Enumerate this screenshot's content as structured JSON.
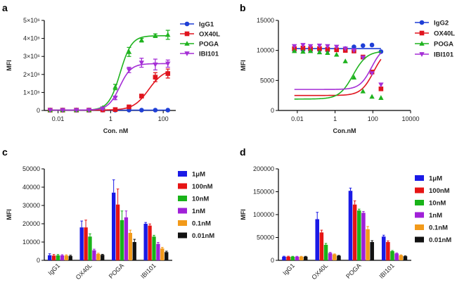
{
  "chart_data": [
    {
      "panel": "a",
      "type": "line",
      "xlabel": "Con. nM",
      "ylabel": "MFI",
      "x_scale": "log",
      "x_ticks": [
        {
          "v": 0.01,
          "t": "0.01"
        },
        {
          "v": 1,
          "t": "1"
        },
        {
          "v": 100,
          "t": "100"
        }
      ],
      "xlim": [
        0.003,
        300
      ],
      "ylim": [
        0,
        5000000
      ],
      "y_ticks": [
        {
          "v": 0,
          "t": "0"
        },
        {
          "v": 1000000,
          "t": "1×10⁶"
        },
        {
          "v": 2000000,
          "t": "2×10⁶"
        },
        {
          "v": 3000000,
          "t": "3×10⁶"
        },
        {
          "v": 4000000,
          "t": "4×10⁶"
        },
        {
          "v": 5000000,
          "t": "5×10⁶"
        }
      ],
      "legend_position": "top-right",
      "series": [
        {
          "name": "IgG1",
          "color": "#1f3fd6",
          "marker": "circle",
          "x": [
            0.005,
            0.015,
            0.05,
            0.15,
            0.5,
            1.5,
            5,
            15,
            50,
            150
          ],
          "y": [
            20000,
            20000,
            20000,
            20000,
            20000,
            20000,
            20000,
            20000,
            20000,
            20000
          ],
          "err": [
            0,
            0,
            0,
            0,
            0,
            0,
            0,
            0,
            0,
            0
          ],
          "fit": {
            "bottom": 20000,
            "top": 20000,
            "ec50": 1,
            "hill": 1
          }
        },
        {
          "name": "OX40L",
          "color": "#e0141e",
          "marker": "square",
          "x": [
            0.005,
            0.015,
            0.05,
            0.15,
            0.5,
            1.5,
            5,
            15,
            50,
            150
          ],
          "y": [
            20000,
            20000,
            20000,
            20000,
            30000,
            50000,
            200000,
            800000,
            1850000,
            2050000
          ],
          "err": [
            0,
            0,
            0,
            0,
            0,
            0,
            50000,
            100000,
            250000,
            250000
          ],
          "fit": {
            "bottom": 20000,
            "top": 2300000,
            "ec50": 28,
            "hill": 1.5
          }
        },
        {
          "name": "POGA",
          "color": "#1fb31f",
          "marker": "triangle",
          "x": [
            0.005,
            0.015,
            0.05,
            0.15,
            0.5,
            1.5,
            5,
            15,
            50,
            150
          ],
          "y": [
            20000,
            20000,
            20000,
            20000,
            150000,
            1300000,
            3250000,
            3900000,
            4150000,
            4200000
          ],
          "err": [
            0,
            0,
            0,
            0,
            50000,
            150000,
            250000,
            100000,
            100000,
            250000
          ],
          "fit": {
            "bottom": 20000,
            "top": 4150000,
            "ec50": 2.3,
            "hill": 2
          }
        },
        {
          "name": "IBI101",
          "color": "#a52fd6",
          "marker": "triangle-down",
          "x": [
            0.005,
            0.015,
            0.05,
            0.15,
            0.5,
            1.5,
            5,
            15,
            50,
            150
          ],
          "y": [
            20000,
            20000,
            20000,
            20000,
            100000,
            700000,
            2250000,
            2650000,
            2550000,
            2600000
          ],
          "err": [
            0,
            0,
            0,
            0,
            50000,
            100000,
            150000,
            250000,
            300000,
            200000
          ],
          "fit": {
            "bottom": 20000,
            "top": 2600000,
            "ec50": 2.2,
            "hill": 2
          }
        }
      ]
    },
    {
      "panel": "b",
      "type": "line",
      "xlabel": "Con.nM",
      "ylabel": "MFI",
      "x_scale": "log",
      "x_ticks": [
        {
          "v": 0.01,
          "t": "0.01"
        },
        {
          "v": 1,
          "t": "1"
        },
        {
          "v": 100,
          "t": "100"
        },
        {
          "v": 10000,
          "t": "10000"
        }
      ],
      "xlim": [
        0.001,
        10000
      ],
      "ylim": [
        0,
        15000
      ],
      "y_ticks": [
        {
          "v": 0,
          "t": "0"
        },
        {
          "v": 5000,
          "t": "5000"
        },
        {
          "v": 10000,
          "t": "10000"
        },
        {
          "v": 15000,
          "t": "15000"
        }
      ],
      "legend_position": "top-right",
      "series": [
        {
          "name": "IgG2",
          "color": "#1f3fd6",
          "marker": "circle",
          "x": [
            0.007,
            0.02,
            0.05,
            0.15,
            0.4,
            1.2,
            3.5,
            10,
            30,
            90,
            270
          ],
          "y": [
            10000,
            10100,
            10000,
            10100,
            10000,
            10200,
            10300,
            10600,
            10800,
            10900,
            9800
          ],
          "err": [
            0,
            0,
            0,
            0,
            0,
            0,
            0,
            0,
            0,
            0,
            0
          ],
          "fit": {
            "bottom": 10300,
            "top": 10300,
            "ec50": 1,
            "hill": 1
          }
        },
        {
          "name": "OX40L",
          "color": "#e0141e",
          "marker": "square",
          "x": [
            0.007,
            0.02,
            0.05,
            0.15,
            0.4,
            1.2,
            3.5,
            10,
            30,
            90,
            270
          ],
          "y": [
            10300,
            10400,
            10300,
            10300,
            10200,
            10100,
            10000,
            9900,
            8900,
            6400,
            3600
          ],
          "err": [
            0,
            0,
            0,
            0,
            0,
            0,
            0,
            0,
            0,
            0,
            0
          ],
          "fit": {
            "bottom": 2500,
            "top": 10400,
            "ec50": 110,
            "hill": 1.3
          }
        },
        {
          "name": "POGA",
          "color": "#1fb31f",
          "marker": "triangle",
          "x": [
            0.007,
            0.02,
            0.05,
            0.15,
            0.4,
            1.2,
            3.5,
            10,
            30,
            90,
            270
          ],
          "y": [
            9900,
            9800,
            9900,
            9700,
            9600,
            9300,
            8200,
            5500,
            3200,
            2300,
            2100
          ],
          "err": [
            0,
            0,
            0,
            0,
            0,
            0,
            0,
            0,
            0,
            0,
            0
          ],
          "fit": {
            "bottom": 1900,
            "top": 9900,
            "ec50": 9,
            "hill": 1.2
          }
        },
        {
          "name": "IBI101",
          "color": "#a52fd6",
          "marker": "triangle-down",
          "x": [
            0.007,
            0.02,
            0.05,
            0.15,
            0.4,
            1.2,
            3.5,
            10,
            30,
            90,
            270
          ],
          "y": [
            10700,
            10900,
            10700,
            10800,
            10700,
            10600,
            10300,
            10000,
            8800,
            6200,
            4300
          ],
          "err": [
            0,
            0,
            0,
            0,
            0,
            0,
            0,
            0,
            0,
            0,
            0
          ],
          "fit": {
            "bottom": 3500,
            "top": 10800,
            "ec50": 85,
            "hill": 1.4
          }
        }
      ]
    },
    {
      "panel": "c",
      "type": "bar",
      "ylabel": "MFI",
      "ylim": [
        0,
        50000
      ],
      "y_ticks": [
        {
          "v": 0,
          "t": "0"
        },
        {
          "v": 10000,
          "t": "10000"
        },
        {
          "v": 20000,
          "t": "20000"
        },
        {
          "v": 30000,
          "t": "30000"
        },
        {
          "v": 40000,
          "t": "40000"
        },
        {
          "v": 50000,
          "t": "50000"
        }
      ],
      "categories": [
        "IgG1",
        "OX40L",
        "POGA",
        "IBI101"
      ],
      "legend_position": "right",
      "series": [
        {
          "name": "1μM",
          "color": "#1a1ae6",
          "values": [
            2800,
            18000,
            37000,
            20000
          ],
          "err": [
            800,
            3500,
            7000,
            700
          ]
        },
        {
          "name": "100nM",
          "color": "#e61414",
          "values": [
            2600,
            18000,
            30500,
            19000
          ],
          "err": [
            600,
            4000,
            8500,
            900
          ]
        },
        {
          "name": "10nM",
          "color": "#19b319",
          "values": [
            2700,
            13000,
            22000,
            13000
          ],
          "err": [
            500,
            1500,
            5000,
            700
          ]
        },
        {
          "name": "1nM",
          "color": "#a020d8",
          "values": [
            2700,
            5500,
            23500,
            9000
          ],
          "err": [
            400,
            600,
            3500,
            800
          ]
        },
        {
          "name": "0.1nM",
          "color": "#f29a1a",
          "values": [
            2600,
            3500,
            15000,
            6500
          ],
          "err": [
            400,
            400,
            1500,
            600
          ]
        },
        {
          "name": "0.01nM",
          "color": "#111111",
          "values": [
            2400,
            3000,
            10000,
            4500
          ],
          "err": [
            400,
            300,
            1500,
            500
          ]
        }
      ]
    },
    {
      "panel": "d",
      "type": "bar",
      "ylabel": "MFI",
      "ylim": [
        0,
        200000
      ],
      "y_ticks": [
        {
          "v": 0,
          "t": "0"
        },
        {
          "v": 50000,
          "t": "50000"
        },
        {
          "v": 100000,
          "t": "100000"
        },
        {
          "v": 150000,
          "t": "150000"
        },
        {
          "v": 200000,
          "t": "200000"
        }
      ],
      "categories": [
        "IgG1",
        "OX40L",
        "POGA",
        "IBI101"
      ],
      "legend_position": "right",
      "series": [
        {
          "name": "1μM",
          "color": "#1a1ae6",
          "values": [
            8000,
            90000,
            152000,
            52000
          ],
          "err": [
            1000,
            15000,
            6000,
            3000
          ]
        },
        {
          "name": "100nM",
          "color": "#e61414",
          "values": [
            8000,
            61000,
            122000,
            40000
          ],
          "err": [
            1000,
            5000,
            8000,
            2500
          ]
        },
        {
          "name": "10nM",
          "color": "#19b319",
          "values": [
            8000,
            34000,
            109000,
            20000
          ],
          "err": [
            800,
            3000,
            3000,
            1500
          ]
        },
        {
          "name": "1nM",
          "color": "#a020d8",
          "values": [
            8000,
            16000,
            104000,
            15000
          ],
          "err": [
            800,
            1500,
            3000,
            1000
          ]
        },
        {
          "name": "0.1nM",
          "color": "#f29a1a",
          "values": [
            8000,
            13000,
            68000,
            11000
          ],
          "err": [
            800,
            1000,
            6000,
            1000
          ]
        },
        {
          "name": "0.01nM",
          "color": "#111111",
          "values": [
            8000,
            10000,
            40000,
            9000
          ],
          "err": [
            800,
            800,
            3000,
            800
          ]
        }
      ]
    }
  ],
  "panels": {
    "a": "a",
    "b": "b",
    "c": "c",
    "d": "d"
  }
}
